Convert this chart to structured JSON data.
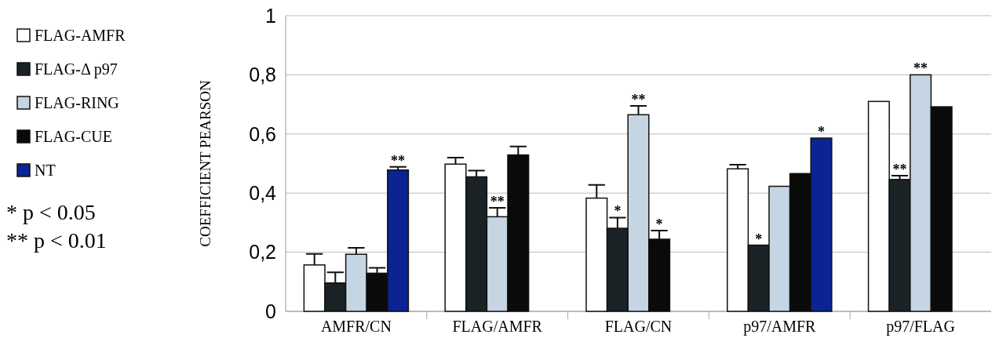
{
  "chart_data": {
    "type": "bar",
    "ylabel": "COEFFICIENT  PEARSON",
    "categories": [
      "AMFR/CN",
      "FLAG/AMFR",
      "FLAG/CN",
      "p97/AMFR",
      "p97/FLAG"
    ],
    "series": [
      {
        "name": "FLAG-AMFR",
        "color": "#ffffff",
        "values": [
          0.157,
          0.498,
          0.383,
          0.482,
          0.71
        ],
        "errors": [
          [
            0.157,
            0.194
          ],
          [
            0.498,
            0.52
          ],
          [
            0.383,
            0.428
          ],
          [
            0.482,
            0.496
          ],
          null
        ],
        "value_labels": [
          null,
          null,
          null,
          null,
          null
        ]
      },
      {
        "name": "FLAG-Δ p97",
        "color": "#1a2226",
        "values": [
          0.096,
          0.455,
          0.281,
          0.224,
          0.446
        ],
        "errors": [
          [
            0.096,
            0.132
          ],
          [
            0.455,
            0.476
          ],
          [
            0.281,
            0.317
          ],
          null,
          [
            0.446,
            0.459
          ]
        ],
        "value_labels": [
          null,
          null,
          "*",
          "*",
          "**"
        ]
      },
      {
        "name": "FLAG-RING",
        "color": "#c5d5e3",
        "values": [
          0.193,
          0.32,
          0.665,
          0.423,
          0.8
        ],
        "errors": [
          [
            0.193,
            0.215
          ],
          [
            0.32,
            0.35
          ],
          [
            0.665,
            0.695
          ],
          null,
          null
        ],
        "value_labels": [
          null,
          "**",
          "**",
          null,
          "**"
        ]
      },
      {
        "name": "FLAG-CUE",
        "color": "#0a0a0a",
        "values": [
          0.129,
          0.529,
          0.244,
          0.466,
          0.692
        ],
        "errors": [
          [
            0.129,
            0.147
          ],
          [
            0.529,
            0.558
          ],
          [
            0.244,
            0.273
          ],
          null,
          null
        ],
        "value_labels": [
          null,
          null,
          "*",
          null,
          null
        ]
      },
      {
        "name": "NT",
        "color": "#0a2494",
        "values": [
          0.478,
          null,
          null,
          0.586,
          null
        ],
        "errors": [
          [
            0.478,
            0.489
          ],
          null,
          null,
          null,
          null
        ],
        "value_labels": [
          "**",
          null,
          null,
          "*",
          null
        ]
      }
    ],
    "ylim": [
      0,
      1
    ],
    "yticks": [
      0,
      {
        "value": 0.2,
        "label": "0,2"
      },
      {
        "value": 0.4,
        "label": "0,4"
      },
      {
        "value": 0.6,
        "label": "0,6"
      },
      {
        "value": 0.8,
        "label": "0,8"
      },
      1
    ],
    "grid": "y",
    "legend": "left",
    "annotations": [
      "* p < 0.05",
      "** p < 0.01"
    ]
  }
}
